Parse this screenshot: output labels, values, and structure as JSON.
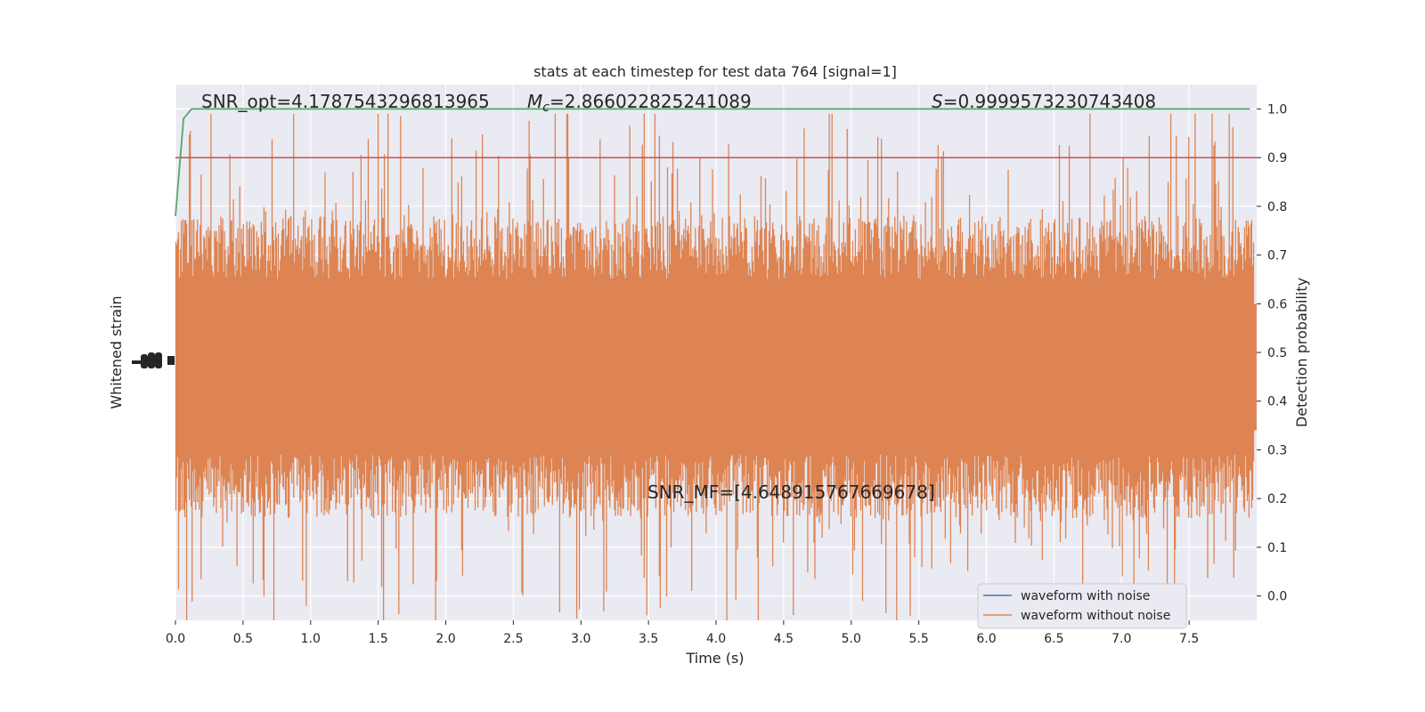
{
  "chart_data": {
    "type": "line",
    "title": "stats at each timestep for test data 764 [signal=1]",
    "xlabel": "Time (s)",
    "ylabel_left": "Whitened strain",
    "ylabel_right": "Detection probability",
    "xlim": [
      0.0,
      8.0
    ],
    "ylim_right": [
      -0.05,
      1.05
    ],
    "x_ticks": [
      "0.0",
      "0.5",
      "1.0",
      "1.5",
      "2.0",
      "2.5",
      "3.0",
      "3.5",
      "4.0",
      "4.5",
      "5.0",
      "5.5",
      "6.0",
      "6.5",
      "7.0",
      "7.5"
    ],
    "x_tick_values": [
      0.0,
      0.5,
      1.0,
      1.5,
      2.0,
      2.5,
      3.0,
      3.5,
      4.0,
      4.5,
      5.0,
      5.5,
      6.0,
      6.5,
      7.0,
      7.5
    ],
    "y_right_ticks": [
      "0.0",
      "0.1",
      "0.2",
      "0.3",
      "0.4",
      "0.5",
      "0.6",
      "0.7",
      "0.8",
      "0.9",
      "1.0"
    ],
    "y_right_tick_values": [
      0.0,
      0.1,
      0.2,
      0.3,
      0.4,
      0.5,
      0.6,
      0.7,
      0.8,
      0.9,
      1.0
    ],
    "grid": true,
    "legend_position": "lower-right",
    "series": [
      {
        "name": "waveform with noise",
        "color": "#4c72b0"
      },
      {
        "name": "waveform without noise",
        "color": "#dd8452",
        "band_center": 0.47,
        "band_core_half_width": 0.13,
        "band_max_excursion": 0.52
      }
    ],
    "threshold": {
      "value": 0.9,
      "color": "#c44e52"
    },
    "probability_curve": {
      "color": "#55a868",
      "x": [
        0.0,
        0.06,
        0.12,
        7.95
      ],
      "y": [
        0.78,
        0.98,
        1.0,
        1.0
      ]
    },
    "annotations": {
      "snr_opt": "SNR_opt=4.1787543296813965",
      "mc_symbol": "M",
      "mc_sub": "c",
      "mc_value": "=2.866022825241089",
      "s_symbol": "S",
      "s_value": "=0.9999573230743408",
      "snr_mf": "SNR_MF=[4.648915767669678]"
    }
  }
}
